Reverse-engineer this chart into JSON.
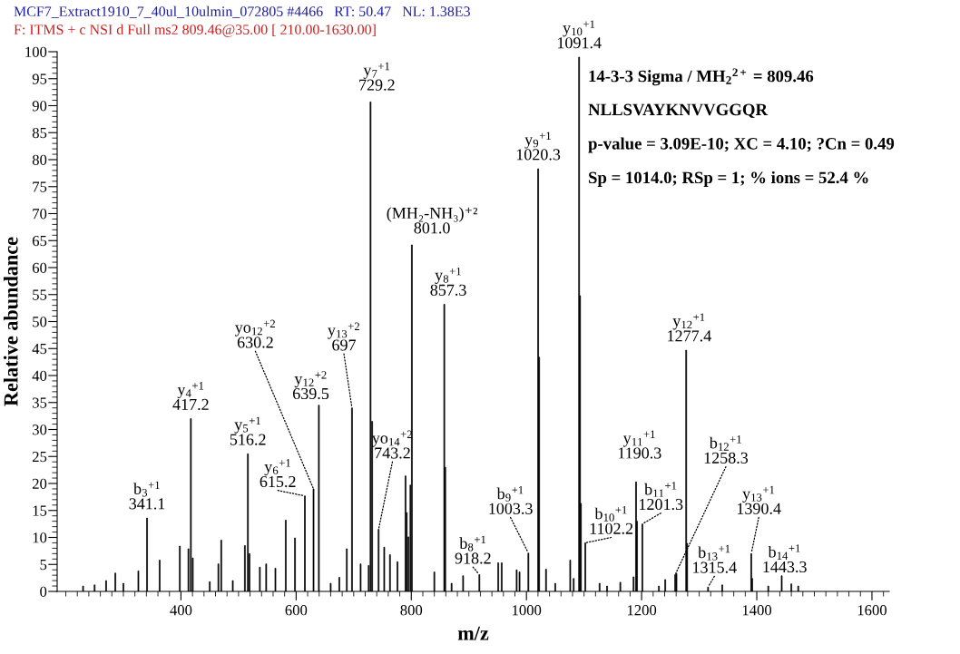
{
  "chart_data": {
    "type": "bar",
    "xlabel": "m/z",
    "ylabel": "Relative abundance",
    "color": "#000000",
    "x": [
      230,
      250,
      270,
      286,
      300,
      326,
      341.1,
      363,
      398,
      413,
      417.2,
      420.5,
      450,
      465,
      470,
      490,
      511,
      516.2,
      519,
      537,
      548,
      564,
      582,
      598,
      615.2,
      630.2,
      639.5,
      660,
      675,
      688,
      697,
      712,
      726,
      729.2,
      732,
      743.2,
      753,
      763,
      776,
      790,
      792,
      795,
      798.5,
      801.0,
      840,
      857.3,
      859,
      870,
      890,
      918.2,
      951,
      957,
      983,
      988,
      1003.3,
      1020.3,
      1022,
      1034,
      1050,
      1076,
      1082,
      1091.4,
      1093,
      1094.5,
      1102.2,
      1127,
      1140,
      1163,
      1186,
      1190.3,
      1192,
      1201.3,
      1230,
      1241,
      1258.3,
      1260.5,
      1277.4,
      1279,
      1315.4,
      1340,
      1390.4,
      1392,
      1420,
      1443.3,
      1460,
      1472
    ],
    "values": [
      1.0,
      1.2,
      2.0,
      3.4,
      1.5,
      3.8,
      13.6,
      5.8,
      8.4,
      7.9,
      32.0,
      6.2,
      1.8,
      5.1,
      9.5,
      2.0,
      8.5,
      25.5,
      7.0,
      4.5,
      5.1,
      4.3,
      13.2,
      9.9,
      17.7,
      19.0,
      34.5,
      1.5,
      2.6,
      7.9,
      34.0,
      5.1,
      4.8,
      90.7,
      31.5,
      11.5,
      8.2,
      6.8,
      5.5,
      21.4,
      14.6,
      10.1,
      19.7,
      64.2,
      3.6,
      53.2,
      23.0,
      1.5,
      2.9,
      3.1,
      5.3,
      5.3,
      4.0,
      3.6,
      7.1,
      78.3,
      43.4,
      4.1,
      1.5,
      5.8,
      2.4,
      99.0,
      54.8,
      16.3,
      9.0,
      1.5,
      1.0,
      1.7,
      2.7,
      20.3,
      13.0,
      12.5,
      1.0,
      2.2,
      3.1,
      3.3,
      44.7,
      8.9,
      0.8,
      1.2,
      7.0,
      2.4,
      1.0,
      2.9,
      1.4,
      1.0
    ],
    "xlim": [
      185,
      1630
    ],
    "ylim": [
      0,
      100
    ],
    "xticks": [
      400,
      600,
      800,
      1000,
      1200,
      1400,
      1600
    ],
    "yticks": [
      0,
      5,
      10,
      15,
      20,
      25,
      30,
      35,
      40,
      45,
      50,
      55,
      60,
      65,
      70,
      75,
      80,
      85,
      90,
      95,
      100
    ],
    "grid": false,
    "annotations": [
      "MCF7_Extract1910_7_40ul_10ulmin_072805 #4466   RT: 50.47   NL: 1.38E3",
      "F: ITMS + c NSI d Full ms2 809.46@35.00 [ 210.00-1630.00]",
      "14-3-3 Sigma / MH$_{2}$$^{2+}$ = 809.46",
      "NLLSVAYKNVVGGQR",
      "p-value = 3.09E-10; XC = 4.10; ?Cn = 0.49",
      "Sp = 1014.0; RSp = 1; % ions = 52.4 %",
      {
        "text": "b$_{3}$$^{+1}$\n341.1",
        "x": 341.1,
        "y": 13.6
      },
      {
        "text": "y$_{4}$$^{+1}$\n417.2",
        "x": 417.2,
        "y": 32.0
      },
      {
        "text": "y$_{5}$$^{+1}$\n516.2",
        "x": 516.2,
        "y": 25.5
      },
      {
        "text": "y$_{6}$$^{+1}$\n615.2",
        "x": 615.2,
        "y": 17.7
      },
      {
        "text": "yo$_{12}$$^{+2}$\n630.2",
        "x": 630.2,
        "y": 19.0
      },
      {
        "text": "y$_{12}$$^{+2}$\n639.5",
        "x": 639.5,
        "y": 34.5
      },
      {
        "text": "y$_{13}$$^{+2}$\n697",
        "x": 697,
        "y": 34.0
      },
      {
        "text": "y$_{7}$$^{+1}$\n729.2",
        "x": 729.2,
        "y": 90.7
      },
      {
        "text": "yo$_{14}$$^{+2}$\n743.2",
        "x": 743.2,
        "y": 11.5
      },
      {
        "text": "(MH₂-NH₃)⁺²\n801.0",
        "x": 801.0,
        "y": 64.2
      },
      {
        "text": "y$_{8}$$^{+1}$\n857.3",
        "x": 857.3,
        "y": 53.2
      },
      {
        "text": "b$_{8}$$^{+1}$\n918.2",
        "x": 918.2,
        "y": 3.1
      },
      {
        "text": "b$_{9}$$^{+1}$\n1003.3",
        "x": 1003.3,
        "y": 7.1
      },
      {
        "text": "y$_{9}$$^{+1}$\n1020.3",
        "x": 1020.3,
        "y": 78.3
      },
      {
        "text": "y$_{10}$$^{+1}$\n1091.4",
        "x": 1091.4,
        "y": 99.0
      },
      {
        "text": "b$_{10}$$^{+1}$\n1102.2",
        "x": 1102.2,
        "y": 9.0
      },
      {
        "text": "y$_{11}$$^{+1}$\n1190.3",
        "x": 1190.3,
        "y": 20.3
      },
      {
        "text": "b$_{11}$$^{+1}$\n1201.3",
        "x": 1201.3,
        "y": 12.5
      },
      {
        "text": "b$_{12}$$^{+1}$\n1258.3",
        "x": 1258.3,
        "y": 3.1
      },
      {
        "text": "y$_{12}$$^{+1}$\n1277.4",
        "x": 1277.4,
        "y": 44.7
      },
      {
        "text": "b$_{13}$$^{+1}$\n1315.4",
        "x": 1315.4,
        "y": 0.8
      },
      {
        "text": "y$_{13}$$^{+1}$\n1390.4",
        "x": 1390.4,
        "y": 7.0
      },
      {
        "text": "b$_{14}$$^{+1}$\n1443.3",
        "x": 1443.3,
        "y": 2.9
      }
    ]
  }
}
